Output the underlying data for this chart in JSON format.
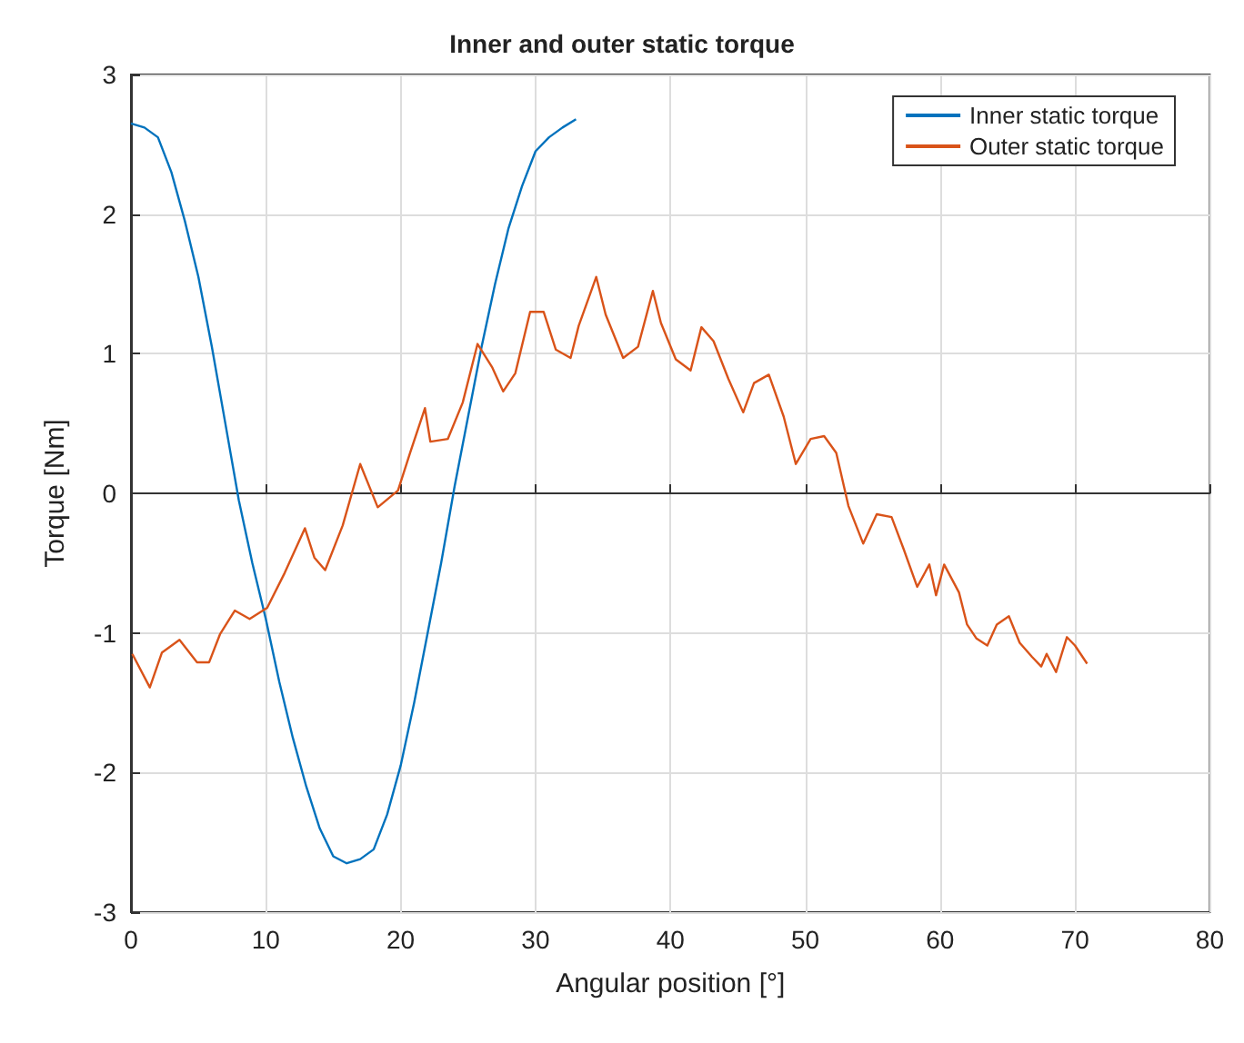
{
  "chart_data": {
    "type": "line",
    "title": "Inner and outer static torque",
    "xlabel": "Angular position [°]",
    "ylabel": "Torque [Nm]",
    "xlim": [
      0,
      80
    ],
    "xticks": [
      0,
      10,
      20,
      30,
      40,
      50,
      60,
      70,
      80
    ],
    "ylim": [
      -3,
      3
    ],
    "yticks": [
      -3,
      -2,
      -1,
      0,
      1,
      2,
      3
    ],
    "grid": true,
    "legend": "top right",
    "line_style": "solid",
    "marker": "none",
    "series": [
      {
        "name": "Inner static torque",
        "color": "#0072bd",
        "x": [
          0,
          1,
          2,
          3,
          4,
          5,
          6,
          7,
          8,
          9,
          10,
          11,
          12,
          13,
          14,
          15,
          16,
          17,
          18,
          19,
          20,
          21,
          22,
          23,
          24,
          25,
          26,
          27,
          28,
          29,
          30,
          31,
          32,
          33
        ],
        "values": [
          2.65,
          2.62,
          2.55,
          2.3,
          1.95,
          1.55,
          1.05,
          0.5,
          -0.05,
          -0.5,
          -0.9,
          -1.35,
          -1.75,
          -2.1,
          -2.4,
          -2.6,
          -2.65,
          -2.62,
          -2.55,
          -2.3,
          -1.95,
          -1.5,
          -1.0,
          -0.5,
          0.05,
          0.55,
          1.05,
          1.5,
          1.9,
          2.2,
          2.45,
          2.55,
          2.62,
          2.68
        ]
      },
      {
        "name": "Outer static torque",
        "color": "#d95319",
        "x": [
          0.1,
          1.4,
          2.3,
          3.6,
          4.9,
          5.8,
          6.6,
          7.7,
          8.8,
          10.1,
          11.4,
          12.9,
          13.6,
          14.4,
          15.7,
          17,
          18.3,
          19.8,
          20.7,
          21.8,
          22.2,
          23.5,
          24.6,
          25.7,
          26.8,
          27.6,
          28.5,
          29.6,
          30.6,
          31.5,
          32.6,
          33.2,
          34.5,
          35.2,
          36.5,
          37.6,
          38.7,
          39.3,
          40.4,
          41.5,
          42.3,
          43.2,
          44.3,
          45.4,
          46.2,
          47.3,
          48.4,
          49.3,
          50.4,
          51.4,
          52.3,
          53.2,
          54.3,
          55.3,
          56.4,
          57.3,
          58.3,
          59.2,
          59.7,
          60.3,
          61.4,
          62.0,
          62.7,
          63.5,
          64.2,
          65.1,
          65.9,
          66.8,
          67.5,
          67.9,
          68.6,
          69.4,
          70.0,
          70.9
        ],
        "values": [
          -1.15,
          -1.39,
          -1.14,
          -1.05,
          -1.21,
          -1.21,
          -1.01,
          -0.84,
          -0.9,
          -0.82,
          -0.57,
          -0.25,
          -0.46,
          -0.55,
          -0.23,
          0.21,
          -0.1,
          0.02,
          0.29,
          0.61,
          0.37,
          0.39,
          0.65,
          1.07,
          0.9,
          0.73,
          0.86,
          1.3,
          1.3,
          1.03,
          0.97,
          1.2,
          1.55,
          1.28,
          0.97,
          1.05,
          1.45,
          1.22,
          0.96,
          0.88,
          1.19,
          1.09,
          0.82,
          0.58,
          0.79,
          0.85,
          0.55,
          0.21,
          0.39,
          0.41,
          0.29,
          -0.09,
          -0.36,
          -0.15,
          -0.17,
          -0.4,
          -0.67,
          -0.51,
          -0.73,
          -0.51,
          -0.71,
          -0.94,
          -1.04,
          -1.09,
          -0.94,
          -0.88,
          -1.07,
          -1.17,
          -1.24,
          -1.15,
          -1.28,
          -1.03,
          -1.09,
          -1.22
        ]
      }
    ]
  }
}
